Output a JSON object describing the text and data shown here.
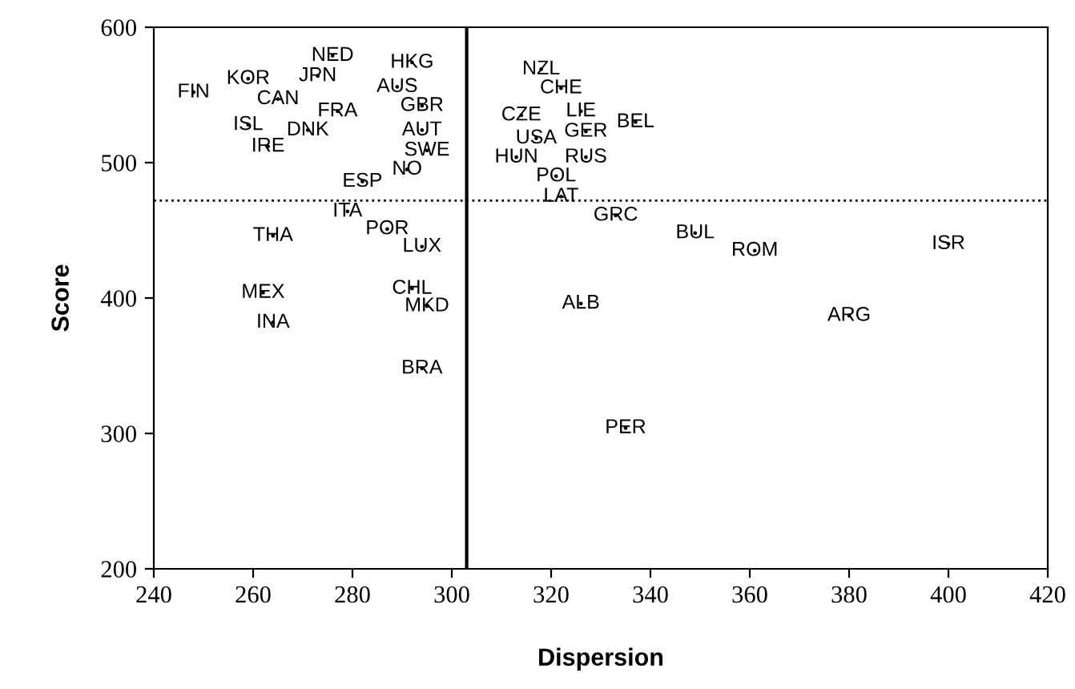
{
  "chart_data": {
    "type": "scatter",
    "xlabel": "Dispersion",
    "ylabel": "Score",
    "marker": "none",
    "xlim": [
      240,
      420
    ],
    "xticks": [
      240,
      260,
      280,
      300,
      320,
      340,
      360,
      380,
      400,
      420
    ],
    "ylim": [
      200,
      600
    ],
    "yticks": [
      200,
      300,
      400,
      500,
      600
    ],
    "grid": false,
    "legend": false,
    "x": [
      248,
      259,
      276,
      273,
      265,
      277,
      259,
      271,
      263,
      292,
      289,
      294,
      294,
      295,
      291,
      282,
      279,
      287,
      264,
      294,
      262,
      264,
      292,
      295,
      294,
      318,
      322,
      314,
      326,
      337,
      317,
      327,
      313,
      327,
      321,
      322,
      333,
      349,
      361,
      326,
      400,
      380,
      335
    ],
    "values": [
      552,
      562,
      579,
      564,
      547,
      538,
      528,
      524,
      512,
      574,
      556,
      542,
      524,
      509,
      495,
      486,
      464,
      451,
      446,
      438,
      404,
      382,
      407,
      394,
      348,
      569,
      555,
      535,
      538,
      530,
      518,
      523,
      504,
      504,
      490,
      475,
      461,
      448,
      435,
      396,
      440,
      387,
      304
    ],
    "value_labels": [
      "FIN",
      "KOR",
      "NED",
      "JPN",
      "CAN",
      "FRA",
      "ISL",
      "DNK",
      "IRE",
      "HKG",
      "AUS",
      "GBR",
      "AUT",
      "SWE",
      "NO",
      "ESP",
      "ITA",
      "POR",
      "THA",
      "LUX",
      "MEX",
      "INA",
      "CHL",
      "MKD",
      "BRA",
      "NZL",
      "CHE",
      "CZE",
      "LIE",
      "BEL",
      "USA",
      "GER",
      "HUN",
      "RUS",
      "POL",
      "LAT",
      "GRC",
      "BUL",
      "ROM",
      "ALB",
      "ISR",
      "ARG",
      "PER"
    ],
    "color": "#000000",
    "ref_lines": [
      {
        "axis": "y",
        "value": 472,
        "label": null,
        "line_style": "dotted"
      },
      {
        "axis": "x",
        "value": 303,
        "label": null,
        "line_style": "solid"
      }
    ]
  }
}
